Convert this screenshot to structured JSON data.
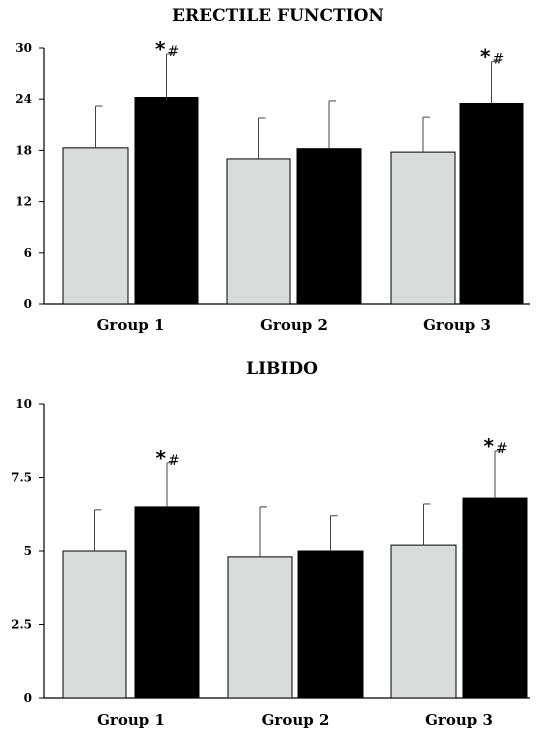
{
  "chart_data": [
    {
      "type": "bar",
      "title": "ERECTILE FUNCTION",
      "categories": [
        "Group 1",
        "Group 2",
        "Group 3"
      ],
      "series": [
        {
          "color": "#d9dcdd",
          "values": [
            18.3,
            17.0,
            17.8
          ],
          "errors": [
            4.9,
            4.8,
            4.1
          ]
        },
        {
          "color": "#000000",
          "values": [
            24.2,
            18.2,
            23.5
          ],
          "errors": [
            5.1,
            5.6,
            4.9
          ]
        }
      ],
      "ylim": [
        0,
        30
      ],
      "yticks": [
        0,
        6,
        12,
        18,
        24,
        30
      ],
      "ytick_labels": [
        "0",
        "6",
        "12",
        "18",
        "24",
        "30"
      ],
      "annotations": [
        {
          "category": "Group 1",
          "series": 1,
          "text": "*",
          "sup": "#"
        },
        {
          "category": "Group 3",
          "series": 1,
          "text": "*",
          "sup": "#"
        }
      ],
      "grid": false
    },
    {
      "type": "bar",
      "title": "LIBIDO",
      "categories": [
        "Group 1",
        "Group 2",
        "Group 3"
      ],
      "series": [
        {
          "color": "#d9dcdd",
          "values": [
            5.0,
            4.8,
            5.2
          ],
          "errors": [
            1.4,
            1.7,
            1.4
          ]
        },
        {
          "color": "#000000",
          "values": [
            6.5,
            5.0,
            6.8
          ],
          "errors": [
            1.5,
            1.2,
            1.6
          ]
        }
      ],
      "ylim": [
        0,
        10
      ],
      "yticks": [
        0,
        2.5,
        5,
        7.5,
        10
      ],
      "ytick_labels": [
        "0",
        "2.5",
        "5",
        "7.5",
        "10"
      ],
      "annotations": [
        {
          "category": "Group 1",
          "series": 1,
          "text": "*",
          "sup": "#"
        },
        {
          "category": "Group 3",
          "series": 1,
          "text": "*",
          "sup": "#"
        }
      ],
      "grid": false
    }
  ]
}
